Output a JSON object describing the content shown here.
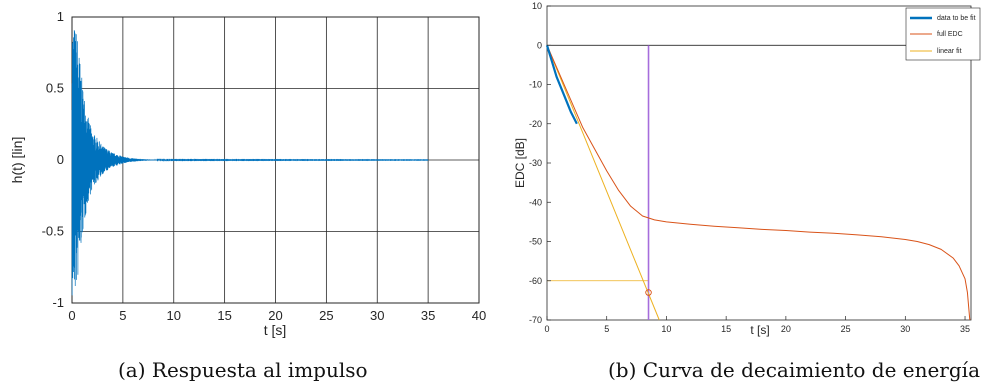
{
  "chart_data": [
    {
      "id": "impulse",
      "type": "line",
      "caption": "(a) Respuesta al impulso",
      "xlabel": "t [s]",
      "ylabel": "h(t) [lin]",
      "xlim": [
        0,
        40
      ],
      "ylim": [
        -1,
        1
      ],
      "xticks": [
        0,
        5,
        10,
        15,
        20,
        25,
        30,
        35,
        40
      ],
      "yticks": [
        -1,
        -0.5,
        0,
        0.5,
        1
      ],
      "xtick_labels": [
        "0",
        "5",
        "10",
        "15",
        "20",
        "25",
        "30",
        "35",
        "40"
      ],
      "ytick_labels": [
        "-1",
        "-0.5",
        "0",
        "0.5",
        "1"
      ],
      "grid": true,
      "series": [
        {
          "color": "#0072bd",
          "envelope": [
            [
              0,
              1.0
            ],
            [
              0.5,
              0.9
            ],
            [
              1,
              0.55
            ],
            [
              1.5,
              0.32
            ],
            [
              2,
              0.2
            ],
            [
              3,
              0.1
            ],
            [
              4,
              0.05
            ],
            [
              5,
              0.025
            ],
            [
              6,
              0.012
            ],
            [
              7,
              0.006
            ],
            [
              8,
              0.003
            ],
            [
              10,
              0.0015
            ],
            [
              35,
              0.001
            ]
          ],
          "end": 35
        }
      ]
    },
    {
      "id": "edc",
      "type": "line",
      "caption": "(b) Curva de decaimiento de energía",
      "xlabel": "t [s]",
      "ylabel": "EDC [dB]",
      "xlim": [
        0,
        35.5
      ],
      "ylim": [
        -70,
        10
      ],
      "xticks": [
        0,
        5,
        10,
        15,
        20,
        25,
        30,
        35
      ],
      "yticks": [
        -70,
        -60,
        -50,
        -40,
        -30,
        -20,
        -10,
        0,
        10
      ],
      "xtick_labels": [
        "0",
        "5",
        "10",
        "15",
        "20",
        "25",
        "30",
        "35"
      ],
      "ytick_labels": [
        "-70",
        "-60",
        "-50",
        "-40",
        "-30",
        "-20",
        "-10",
        "0",
        "10"
      ],
      "grid": false,
      "legend": {
        "position": "top-right",
        "entries": [
          "data to be fit",
          "full EDC",
          "linear fit"
        ]
      },
      "series": [
        {
          "name": "data to be fit",
          "color": "#0072bd",
          "x": [
            0,
            0.4,
            0.8,
            1.2,
            1.6,
            2.0,
            2.5
          ],
          "y": [
            0,
            -4,
            -8,
            -11,
            -14,
            -17,
            -20
          ]
        },
        {
          "name": "full EDC",
          "color": "#d95319",
          "x": [
            0,
            0.5,
            1,
            1.5,
            2,
            2.5,
            3,
            4,
            5,
            6,
            7,
            8,
            9,
            10,
            12,
            14,
            16,
            18,
            20,
            22,
            24,
            26,
            28,
            30,
            31,
            32,
            33,
            34,
            34.5,
            35,
            35.2,
            35.4
          ],
          "y": [
            0,
            -3.5,
            -7,
            -10.5,
            -14,
            -17.5,
            -21,
            -26.5,
            -32,
            -37,
            -41,
            -43.5,
            -44.5,
            -45,
            -45.6,
            -46.1,
            -46.5,
            -46.9,
            -47.2,
            -47.6,
            -47.9,
            -48.3,
            -48.8,
            -49.5,
            -50,
            -50.8,
            -52,
            -54.2,
            -56.2,
            -59.5,
            -63,
            -70
          ]
        },
        {
          "name": "linear fit",
          "color": "#edb120",
          "x": [
            0,
            9.4
          ],
          "y": [
            0,
            -70
          ]
        }
      ],
      "annotations": [
        {
          "type": "vline",
          "x": 8.5,
          "y0": 0,
          "y1": -70,
          "color": "#a66ddc"
        },
        {
          "type": "hline",
          "y": 0,
          "x0": 0,
          "x1": 35.5,
          "color": "#000000"
        },
        {
          "type": "hline",
          "y": -60,
          "x0": 0,
          "x1": 8.5,
          "color": "#edb120"
        },
        {
          "type": "marker",
          "x": 8.5,
          "y": -63,
          "color": "#d95319"
        }
      ]
    }
  ]
}
